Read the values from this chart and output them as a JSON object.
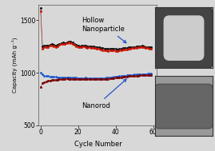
{
  "xlabel": "Cycle Number",
  "ylabel": "Capacity (mAh g⁻¹)",
  "xlim": [
    -1,
    62
  ],
  "ylim": [
    500,
    1650
  ],
  "yticks": [
    500,
    1000,
    1500
  ],
  "xticks": [
    0,
    20,
    40,
    60
  ],
  "bg_color": "#d8d8d8",
  "plot_bg": "#d8d8d8",
  "hollow_label": "Hollow\nNanoparticle",
  "nanorod_label": "Nanorod",
  "hollow_charge_color": "#111111",
  "hollow_discharge_color": "#cc1100",
  "nanorod_charge_color": "#1155cc",
  "nanorod_discharge_color": "#7a0000",
  "hollow_charge_first": 1615,
  "hollow_charge_data": [
    1255,
    1262,
    1258,
    1262,
    1268,
    1272,
    1265,
    1260,
    1268,
    1278,
    1282,
    1288,
    1282,
    1292,
    1298,
    1295,
    1288,
    1275,
    1268,
    1262,
    1255,
    1258,
    1262,
    1258,
    1252,
    1255,
    1250,
    1252,
    1248,
    1245,
    1242,
    1238,
    1235,
    1232,
    1230,
    1228,
    1230,
    1232,
    1230,
    1226,
    1224,
    1228,
    1232,
    1234,
    1238,
    1240,
    1242,
    1244,
    1246,
    1248,
    1250,
    1252,
    1254,
    1256,
    1252,
    1248,
    1246,
    1244,
    1242
  ],
  "hollow_discharge_data": [
    1228,
    1242,
    1244,
    1248,
    1256,
    1260,
    1252,
    1248,
    1255,
    1266,
    1272,
    1278,
    1273,
    1282,
    1290,
    1285,
    1278,
    1266,
    1255,
    1248,
    1242,
    1246,
    1250,
    1246,
    1240,
    1244,
    1236,
    1240,
    1233,
    1230,
    1226,
    1220,
    1217,
    1214,
    1212,
    1209,
    1212,
    1215,
    1212,
    1207,
    1205,
    1211,
    1215,
    1218,
    1222,
    1225,
    1228,
    1230,
    1233,
    1235,
    1238,
    1241,
    1244,
    1246,
    1241,
    1237,
    1234,
    1231,
    1228
  ],
  "nanorod_charge_first": 1002,
  "nanorod_charge_data": [
    988,
    974,
    970,
    967,
    964,
    962,
    961,
    960,
    958,
    957,
    956,
    955,
    955,
    956,
    957,
    955,
    954,
    953,
    952,
    951,
    950,
    950,
    951,
    952,
    951,
    950,
    949,
    950,
    951,
    950,
    950,
    949,
    950,
    951,
    952,
    953,
    955,
    957,
    960,
    963,
    965,
    967,
    969,
    971,
    974,
    976,
    978,
    980,
    981,
    983,
    984,
    985,
    986,
    987,
    988,
    989,
    990,
    991,
    992
  ],
  "nanorod_discharge_first": 862,
  "nanorod_discharge_data": [
    900,
    910,
    918,
    923,
    927,
    929,
    932,
    934,
    936,
    938,
    940,
    941,
    942,
    944,
    943,
    942,
    941,
    940,
    939,
    939,
    939,
    939,
    940,
    941,
    940,
    939,
    938,
    939,
    940,
    939,
    940,
    939,
    940,
    941,
    942,
    943,
    945,
    947,
    950,
    953,
    955,
    957,
    959,
    961,
    963,
    965,
    967,
    969,
    971,
    972,
    973,
    974,
    975,
    976,
    977,
    978,
    979,
    980,
    981
  ]
}
